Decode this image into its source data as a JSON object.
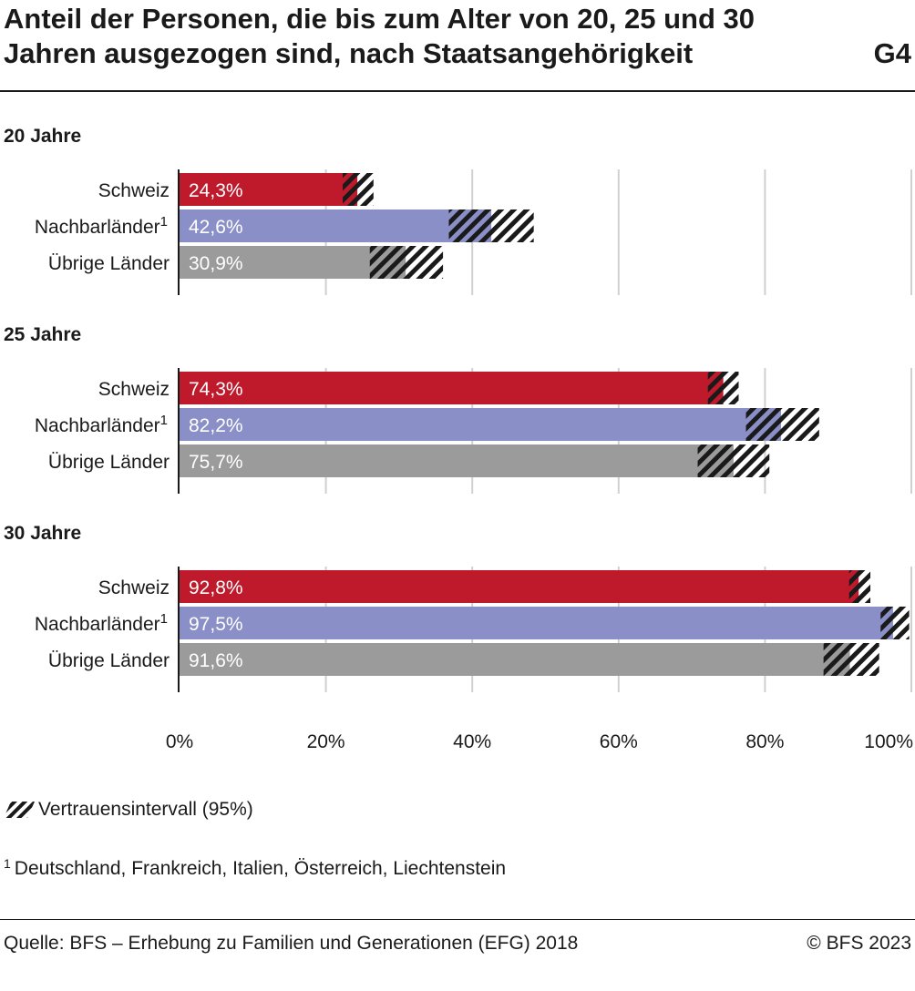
{
  "header": {
    "title": "Anteil der Personen, die bis zum Alter von 20, 25 und 30 Jahren ausgezogen sind, nach Staatsangehörigkeit",
    "chart_id": "G4"
  },
  "legend": {
    "ci_label": "Vertrauensintervall (95%)"
  },
  "footnote": {
    "marker": "1",
    "text": "Deutschland, Frankreich, Italien, Österreich, Liechtenstein"
  },
  "footer": {
    "source": "Quelle: BFS – Erhebung zu Familien und Generationen (EFG) 2018",
    "copyright": "© BFS 2023"
  },
  "colors": {
    "Schweiz": "#be1a2c",
    "Nachbarländer": "#8a8fc8",
    "Übrige Länder": "#9b9b9b",
    "hatch": "#1a1a1a",
    "grid": "#d0d0d0"
  },
  "chart_data": {
    "type": "bar",
    "orientation": "horizontal",
    "xlim": [
      0,
      100
    ],
    "x_ticks": [
      "0%",
      "20%",
      "40%",
      "60%",
      "80%",
      "100%"
    ],
    "grid": true,
    "categories": [
      "Schweiz",
      "Nachbarländer",
      "Übrige Länder"
    ],
    "category_footnote_marker": {
      "Nachbarländer": "1"
    },
    "groups": [
      {
        "label": "20 Jahre",
        "bars": [
          {
            "category": "Schweiz",
            "value": 24.3,
            "value_label": "24,3%",
            "ci": [
              22.3,
              26.5
            ]
          },
          {
            "category": "Nachbarländer",
            "value": 42.6,
            "value_label": "42,6%",
            "ci": [
              36.8,
              48.4
            ]
          },
          {
            "category": "Übrige Länder",
            "value": 30.9,
            "value_label": "30,9%",
            "ci": [
              26.0,
              36.0
            ]
          }
        ]
      },
      {
        "label": "25 Jahre",
        "bars": [
          {
            "category": "Schweiz",
            "value": 74.3,
            "value_label": "74,3%",
            "ci": [
              72.2,
              76.4
            ]
          },
          {
            "category": "Nachbarländer",
            "value": 82.2,
            "value_label": "82,2%",
            "ci": [
              77.4,
              87.4
            ]
          },
          {
            "category": "Übrige Länder",
            "value": 75.7,
            "value_label": "75,7%",
            "ci": [
              70.8,
              80.6
            ]
          }
        ]
      },
      {
        "label": "30 Jahre",
        "bars": [
          {
            "category": "Schweiz",
            "value": 92.8,
            "value_label": "92,8%",
            "ci": [
              91.5,
              94.4
            ]
          },
          {
            "category": "Nachbarländer",
            "value": 97.5,
            "value_label": "97,5%",
            "ci": [
              95.8,
              99.7
            ]
          },
          {
            "category": "Übrige Länder",
            "value": 91.6,
            "value_label": "91,6%",
            "ci": [
              88.0,
              95.6
            ]
          }
        ]
      }
    ]
  }
}
